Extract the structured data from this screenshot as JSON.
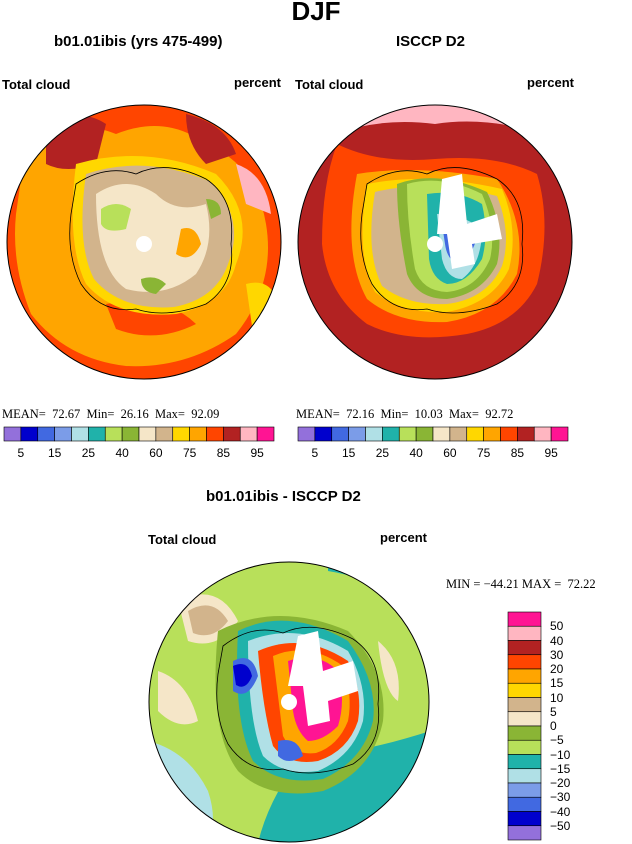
{
  "title": "DJF",
  "panel_left": {
    "title": "b01.01ibis (yrs 475-499)",
    "variable": "Total cloud",
    "units": "percent",
    "stats": {
      "mean_label": "MEAN=",
      "mean": "72.67",
      "min_label": "Min=",
      "min": "26.16",
      "max_label": "Max=",
      "max": "92.09"
    }
  },
  "panel_right": {
    "title": "ISCCP D2",
    "variable": "Total cloud",
    "units": "percent",
    "stats": {
      "mean_label": "MEAN=",
      "mean": "72.16",
      "min_label": "Min=",
      "min": "10.03",
      "max_label": "Max=",
      "max": "92.72"
    }
  },
  "colorbar_top": {
    "tick_labels": [
      "5",
      "15",
      "25",
      "40",
      "60",
      "75",
      "85",
      "95"
    ],
    "colors": [
      "#9370db",
      "#0000cd",
      "#4169e1",
      "#7b9ce8",
      "#b0e0e6",
      "#20b2aa",
      "#b8e05a",
      "#8ab535",
      "#f5e6c8",
      "#d2b48c",
      "#ffd700",
      "#ffa500",
      "#ff4500",
      "#b22222",
      "#ffb6c1",
      "#ff1493"
    ]
  },
  "panel_diff": {
    "title": "b01.01ibis - ISCCP D2",
    "variable": "Total cloud",
    "units": "percent",
    "stats": {
      "min_label": "MIN =",
      "min": "−44.21",
      "max_label": "MAX =",
      "max": "72.22"
    }
  },
  "colorbar_diff": {
    "labels": [
      "50",
      "40",
      "30",
      "20",
      "15",
      "10",
      "5",
      "0",
      "−5",
      "−10",
      "−15",
      "−20",
      "−30",
      "−40",
      "−50"
    ],
    "colors": [
      "#ff1493",
      "#ffb6c1",
      "#b22222",
      "#ff4500",
      "#ffa500",
      "#ffd700",
      "#d2b48c",
      "#f5e6c8",
      "#8ab535",
      "#b8e05a",
      "#20b2aa",
      "#b0e0e6",
      "#7b9ce8",
      "#4169e1",
      "#0000cd",
      "#9370db"
    ]
  }
}
